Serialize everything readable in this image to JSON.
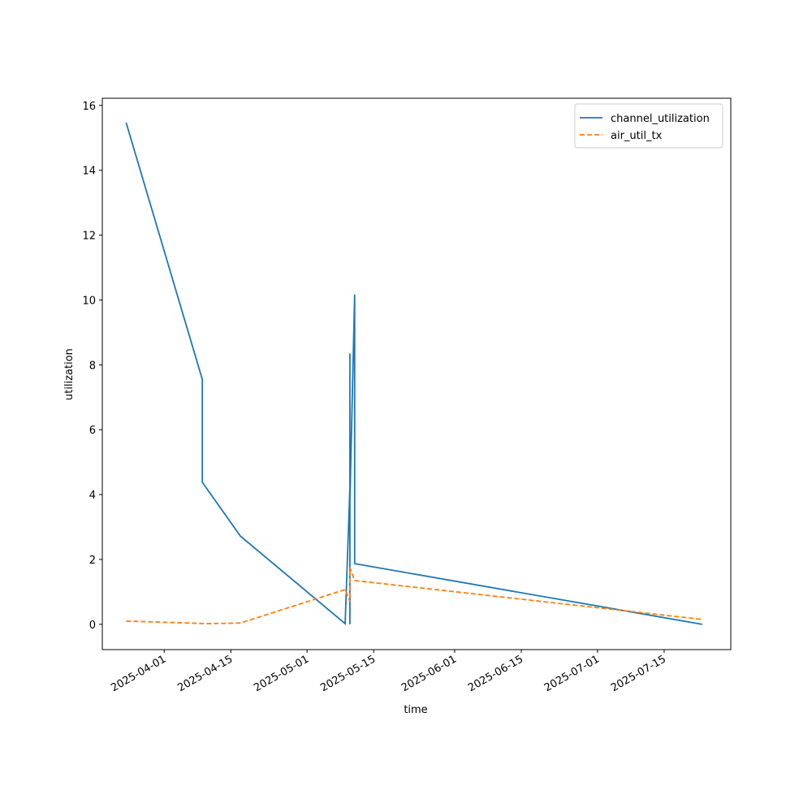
{
  "chart_data": {
    "type": "line",
    "xlabel": "time",
    "ylabel": "utilization",
    "series": [
      {
        "name": "channel_utilization",
        "color": "#1f77b4",
        "dash": "solid",
        "x": [
          "2025-03-24",
          "2025-04-09",
          "2025-04-09",
          "2025-04-17",
          "2025-05-09",
          "2025-05-10",
          "2025-05-10",
          "2025-05-10",
          "2025-05-10",
          "2025-05-11",
          "2025-05-11",
          "2025-07-23"
        ],
        "values": [
          15.47,
          7.55,
          4.38,
          2.72,
          0.02,
          4.2,
          0.0,
          8.35,
          3.8,
          10.17,
          1.87,
          0.0
        ]
      },
      {
        "name": "air_util_tx",
        "color": "#ff7f0e",
        "dash": "dashed",
        "x": [
          "2025-03-24",
          "2025-04-10",
          "2025-04-17",
          "2025-05-09",
          "2025-05-10",
          "2025-05-10",
          "2025-05-11",
          "2025-07-23"
        ],
        "values": [
          0.1,
          0.02,
          0.04,
          1.07,
          0.7,
          1.75,
          1.35,
          0.15
        ]
      }
    ],
    "xlim": [
      "2025-03-19",
      "2025-07-29"
    ],
    "xticks": [
      "2025-04-01",
      "2025-04-15",
      "2025-05-01",
      "2025-05-15",
      "2025-06-01",
      "2025-06-15",
      "2025-07-01",
      "2025-07-15"
    ],
    "ylim": [
      -0.78,
      16.22
    ],
    "yticks": [
      0,
      2,
      4,
      6,
      8,
      10,
      12,
      14,
      16
    ],
    "grid": false,
    "legend": "upper right"
  }
}
